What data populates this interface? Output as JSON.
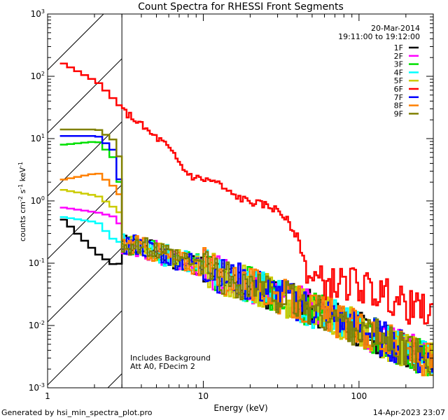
{
  "chart_data": {
    "type": "line",
    "title": "Count Spectra for RHESSI Front Segments",
    "xlabel": "Energy (keV)",
    "ylabel": "counts cm-2 s-1 keV-1",
    "xscale": "log",
    "yscale": "log",
    "xlim": [
      1,
      300
    ],
    "ylim": [
      0.001,
      1000
    ],
    "x_tick_labels": [
      {
        "v": 1,
        "t": "1"
      },
      {
        "v": 10,
        "t": "10"
      },
      {
        "v": 100,
        "t": "100"
      }
    ],
    "y_ticks": [
      {
        "v": 0.001,
        "base": "10",
        "exp": "-3"
      },
      {
        "v": 0.01,
        "base": "10",
        "exp": "-2"
      },
      {
        "v": 0.1,
        "base": "10",
        "exp": "-1"
      },
      {
        "v": 1,
        "base": "10",
        "exp": "0"
      },
      {
        "v": 10,
        "base": "10",
        "exp": "1"
      },
      {
        "v": 100,
        "base": "10",
        "exp": "2"
      },
      {
        "v": 1000,
        "base": "10",
        "exp": "3"
      }
    ],
    "hatched_region_max_keV": 3,
    "info": {
      "date": "20-Mar-2014",
      "time_range": "19:11:00 to 19:12:00"
    },
    "annotations": [
      "Includes Background",
      "Att A0, FDecim 2"
    ],
    "legend_position": "top-right",
    "series": [
      {
        "name": "1F",
        "color": "#000000",
        "start": [
          1.2,
          0.5
        ],
        "low": [
          [
            2.0,
            0.14
          ],
          [
            2.6,
            0.09
          ],
          [
            3.0,
            0.11
          ]
        ],
        "seed": 11
      },
      {
        "name": "2F",
        "color": "#ff00ff",
        "start": [
          1.2,
          0.78
        ],
        "low": [
          [
            2.0,
            0.65
          ],
          [
            2.6,
            0.55
          ],
          [
            3.0,
            0.32
          ]
        ],
        "seed": 22
      },
      {
        "name": "3F",
        "color": "#00e000",
        "start": [
          1.2,
          8.0
        ],
        "low": [
          [
            2.0,
            9.0
          ],
          [
            2.6,
            4.5
          ],
          [
            3.0,
            0.7
          ]
        ],
        "seed": 33
      },
      {
        "name": "4F",
        "color": "#00ffff",
        "start": [
          1.2,
          0.55
        ],
        "low": [
          [
            2.0,
            0.45
          ],
          [
            2.6,
            0.22
          ],
          [
            3.0,
            0.22
          ]
        ],
        "seed": 44
      },
      {
        "name": "5F",
        "color": "#cccc00",
        "start": [
          1.2,
          1.5
        ],
        "low": [
          [
            2.0,
            1.2
          ],
          [
            2.6,
            0.75
          ],
          [
            3.0,
            0.55
          ]
        ],
        "seed": 55
      },
      {
        "name": "6F",
        "color": "#ff0000",
        "start": [
          1.2,
          160
        ],
        "low": [
          [
            2.0,
            80
          ],
          [
            2.6,
            40
          ],
          [
            3.0,
            28
          ]
        ],
        "seed": 66
      },
      {
        "name": "7F",
        "color": "#0000ff",
        "start": [
          1.2,
          11.0
        ],
        "low": [
          [
            2.0,
            11.0
          ],
          [
            2.6,
            6.0
          ],
          [
            3.0,
            0.6
          ]
        ],
        "seed": 77
      },
      {
        "name": "8F",
        "color": "#ff8000",
        "start": [
          1.2,
          2.2
        ],
        "low": [
          [
            2.0,
            2.8
          ],
          [
            2.6,
            1.6
          ],
          [
            3.0,
            0.95
          ]
        ],
        "seed": 88
      },
      {
        "name": "9F",
        "color": "#808000",
        "start": [
          1.2,
          14.0
        ],
        "low": [
          [
            2.0,
            14.0
          ],
          [
            2.6,
            9.0
          ],
          [
            3.0,
            2.5
          ]
        ],
        "seed": 99
      }
    ],
    "common_trend": [
      [
        3.5,
        0.2
      ],
      [
        5.0,
        0.15
      ],
      [
        7.0,
        0.11
      ],
      [
        10.0,
        0.09
      ],
      [
        13.0,
        0.06
      ],
      [
        20.0,
        0.045
      ],
      [
        30.0,
        0.03
      ],
      [
        50.0,
        0.018
      ],
      [
        80.0,
        0.011
      ],
      [
        120.0,
        0.007
      ],
      [
        200.0,
        0.004
      ],
      [
        300.0,
        0.0025
      ]
    ],
    "red_trend": [
      [
        3.0,
        28
      ],
      [
        3.6,
        20
      ],
      [
        4.5,
        12
      ],
      [
        5.5,
        8.5
      ],
      [
        6.5,
        5.0
      ],
      [
        7.5,
        3.0
      ],
      [
        8.5,
        2.4
      ],
      [
        10.0,
        2.2
      ],
      [
        12.0,
        2.0
      ],
      [
        14.0,
        1.4
      ],
      [
        17.0,
        1.1
      ],
      [
        20.0,
        0.95
      ],
      [
        25.0,
        0.85
      ],
      [
        30.0,
        0.7
      ],
      [
        35.0,
        0.45
      ],
      [
        40.0,
        0.25
      ],
      [
        43.0,
        0.13
      ],
      [
        48.0,
        0.06
      ],
      [
        55.0,
        0.05
      ],
      [
        70.0,
        0.045
      ],
      [
        90.0,
        0.05
      ],
      [
        120.0,
        0.035
      ],
      [
        150.0,
        0.03
      ],
      [
        200.0,
        0.02
      ],
      [
        300.0,
        0.015
      ]
    ]
  },
  "footer": {
    "generated_by": "Generated by hsi_min_spectra_plot.pro",
    "timestamp": "14-Apr-2023 23:07"
  }
}
